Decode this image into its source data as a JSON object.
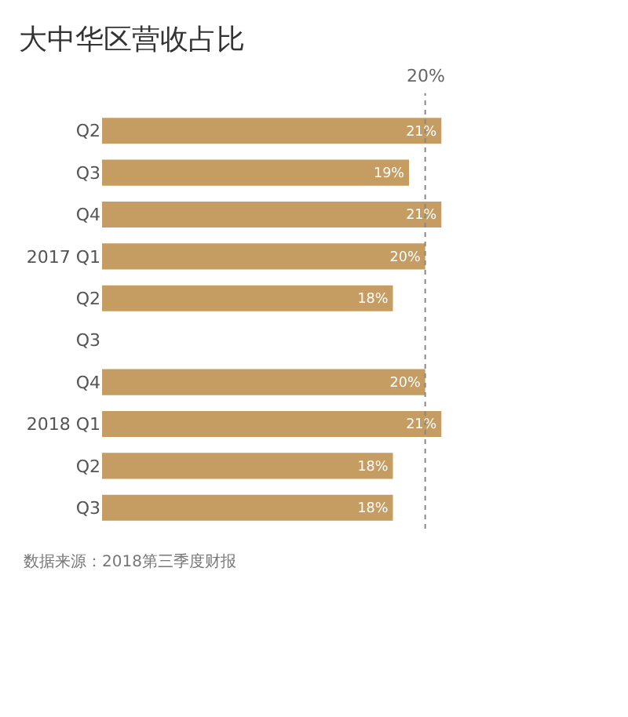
{
  "chart_data": {
    "type": "bar",
    "orientation": "horizontal",
    "title": "大中华区营收占比",
    "categories": [
      "Q2",
      "Q3",
      "Q4",
      "2017 Q1",
      "Q2",
      "Q3",
      "Q4",
      "2018 Q1",
      "Q2",
      "Q3"
    ],
    "values": [
      21,
      19,
      21,
      20,
      18,
      null,
      20,
      21,
      18,
      18
    ],
    "value_labels": [
      "21%",
      "19%",
      "21%",
      "20%",
      "18%",
      null,
      "20%",
      "21%",
      "18%",
      "18%"
    ],
    "color": "#c59d63",
    "tick_labels": "y",
    "grid": false,
    "ref_lines": [
      {
        "axis": "x",
        "value": 20,
        "label": "20%",
        "color": "#888888",
        "line_style": "dotted"
      }
    ],
    "annotations": [
      "数据来源：2018第三季度财报"
    ]
  }
}
